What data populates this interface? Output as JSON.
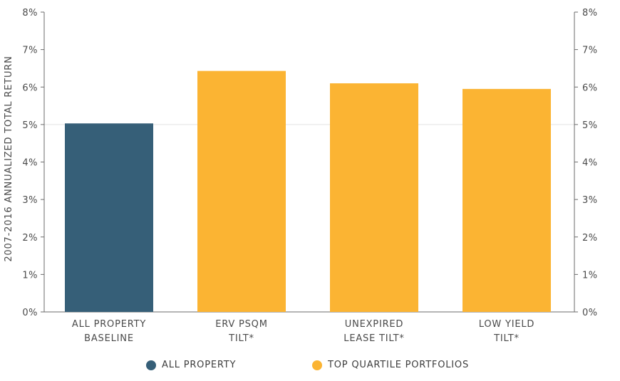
{
  "chart_data": {
    "type": "bar",
    "ylabel": "2007-2016 ANNUALIZED TOTAL RETURN",
    "xlabel": "",
    "ylim": [
      0,
      8
    ],
    "y_ticks": [
      "0%",
      "1%",
      "2%",
      "3%",
      "4%",
      "5%",
      "6%",
      "7%",
      "8%"
    ],
    "secondary_y_axis": true,
    "grid": false,
    "reference_line": 5.0,
    "categories": [
      [
        "ALL PROPERTY",
        "BASELINE"
      ],
      [
        "ERV PSQM",
        "TILT*"
      ],
      [
        "UNEXPIRED",
        "LEASE TILT*"
      ],
      [
        "LOW YIELD",
        "TILT*"
      ]
    ],
    "values": [
      5.03,
      6.43,
      6.1,
      5.95
    ],
    "bar_series": [
      0,
      1,
      1,
      1
    ],
    "series": [
      {
        "name": "ALL PROPERTY",
        "color": "#365f78"
      },
      {
        "name": "TOP QUARTILE PORTFOLIOS",
        "color": "#fbb433"
      }
    ],
    "legend_position": "bottom"
  }
}
